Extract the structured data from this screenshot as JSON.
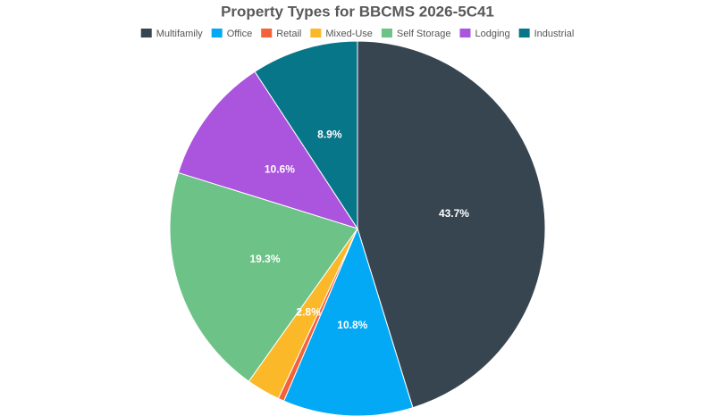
{
  "chart_data": {
    "type": "pie",
    "title": "Property Types for BBCMS 2026-5C41",
    "categories": [
      "Multifamily",
      "Office",
      "Retail",
      "Mixed-Use",
      "Self Storage",
      "Lodging",
      "Industrial"
    ],
    "values": [
      43.7,
      10.8,
      0.5,
      2.8,
      19.3,
      10.6,
      8.9
    ],
    "value_labels": [
      "43.7%",
      "10.8%",
      null,
      "2.8%",
      "19.3%",
      "10.6%",
      "8.9%"
    ],
    "colors": [
      "#374551",
      "#03a9f4",
      "#f4623a",
      "#fbb829",
      "#6cc287",
      "#ab54dd",
      "#087689"
    ],
    "legend": "top"
  }
}
